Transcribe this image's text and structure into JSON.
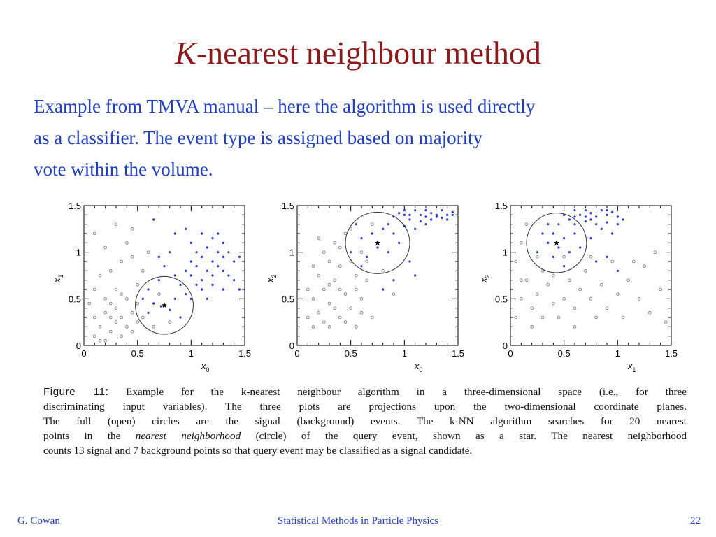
{
  "slide": {
    "title_k": "K",
    "title_rest": "-nearest neighbour method",
    "intro_lines": [
      "Example from TMVA manual – here the algorithm is used directly",
      "as a classifier.  The event type is assigned based on majority",
      "vote within the volume."
    ],
    "caption": {
      "figure_label": "Figure 11:",
      "line1_rest": "Example for the k-nearest neighbour algorithm in a three-dimensional space (i.e., for three",
      "line2": "discriminating input variables). The three plots are projections upon the two-dimensional coordinate planes.",
      "line3": "The full (open) circles are the signal (background) events.  The k-NN algorithm searches for 20 nearest",
      "line4_pre": "points in the",
      "line4_em": "nearest neighborhood",
      "line4_post": "(circle) of the query event, shown as a star.  The nearest neighborhood",
      "line5": "counts 13 signal and 7 background points so that query event may be classified as a signal candidate."
    },
    "footer": {
      "author": "G. Cowan",
      "course": "Statistical Methods in Particle Physics",
      "page": "22"
    }
  },
  "colors": {
    "title": "#8b1a1a",
    "text_blue": "#1f3fbf",
    "signal": "#1f2fd8",
    "background": "#777777",
    "axis": "#000000"
  },
  "chart_data": [
    {
      "type": "scatter",
      "xlabel": "x",
      "xlabel_sub": "0",
      "ylabel": "x",
      "ylabel_sub": "1",
      "xlim": [
        0,
        1.5
      ],
      "ylim": [
        0,
        1.5
      ],
      "xticks": [
        "0",
        "0.5",
        "1",
        "1.5"
      ],
      "yticks": [
        "0",
        "0.5",
        "1",
        "1.5"
      ],
      "query": [
        0.75,
        0.43
      ],
      "neighbourhood_radius": [
        0.27,
        0.31
      ],
      "signal": [
        [
          0.85,
          0.75
        ],
        [
          0.95,
          0.8
        ],
        [
          1.0,
          0.9
        ],
        [
          1.05,
          0.85
        ],
        [
          1.1,
          0.95
        ],
        [
          1.15,
          0.8
        ],
        [
          1.2,
          0.9
        ],
        [
          1.25,
          0.85
        ],
        [
          1.3,
          0.8
        ],
        [
          1.35,
          0.75
        ],
        [
          1.4,
          0.7
        ],
        [
          1.1,
          0.7
        ],
        [
          1.2,
          0.75
        ],
        [
          1.0,
          0.75
        ],
        [
          1.05,
          1.0
        ],
        [
          1.15,
          1.05
        ],
        [
          1.25,
          1.0
        ],
        [
          1.3,
          0.95
        ],
        [
          1.4,
          0.9
        ],
        [
          1.45,
          0.6
        ],
        [
          1.1,
          0.6
        ],
        [
          1.2,
          0.65
        ],
        [
          0.9,
          0.65
        ],
        [
          0.95,
          0.55
        ],
        [
          1.3,
          1.1
        ],
        [
          1.35,
          1.0
        ],
        [
          1.0,
          1.1
        ],
        [
          0.8,
          1.0
        ],
        [
          0.85,
          1.2
        ],
        [
          1.1,
          1.2
        ],
        [
          0.75,
          0.85
        ],
        [
          0.7,
          0.7
        ],
        [
          0.6,
          0.6
        ],
        [
          0.55,
          0.5
        ],
        [
          0.65,
          0.45
        ],
        [
          0.72,
          0.42
        ],
        [
          0.8,
          0.38
        ],
        [
          0.85,
          0.5
        ],
        [
          0.9,
          0.3
        ],
        [
          0.6,
          0.35
        ],
        [
          1.25,
          1.2
        ],
        [
          1.0,
          0.5
        ],
        [
          1.15,
          0.5
        ],
        [
          1.3,
          0.6
        ],
        [
          1.45,
          0.95
        ],
        [
          1.2,
          1.15
        ],
        [
          0.95,
          1.25
        ],
        [
          0.65,
          1.35
        ],
        [
          0.7,
          0.95
        ],
        [
          1.05,
          0.65
        ]
      ],
      "background": [
        [
          0.1,
          0.1
        ],
        [
          0.15,
          0.2
        ],
        [
          0.2,
          0.05
        ],
        [
          0.25,
          0.15
        ],
        [
          0.3,
          0.25
        ],
        [
          0.35,
          0.1
        ],
        [
          0.1,
          0.3
        ],
        [
          0.2,
          0.35
        ],
        [
          0.3,
          0.4
        ],
        [
          0.4,
          0.2
        ],
        [
          0.15,
          0.05
        ],
        [
          0.25,
          0.3
        ],
        [
          0.35,
          0.3
        ],
        [
          0.45,
          0.35
        ],
        [
          0.5,
          0.45
        ],
        [
          0.2,
          0.5
        ],
        [
          0.3,
          0.6
        ],
        [
          0.1,
          0.6
        ],
        [
          0.15,
          0.75
        ],
        [
          0.25,
          0.8
        ],
        [
          0.35,
          0.9
        ],
        [
          0.45,
          0.95
        ],
        [
          0.4,
          1.1
        ],
        [
          0.5,
          0.65
        ],
        [
          0.55,
          0.8
        ],
        [
          0.2,
          1.05
        ],
        [
          0.1,
          1.2
        ],
        [
          0.3,
          1.3
        ],
        [
          0.45,
          1.25
        ],
        [
          0.6,
          1.0
        ],
        [
          0.05,
          0.45
        ],
        [
          0.4,
          0.5
        ],
        [
          0.55,
          0.3
        ],
        [
          0.65,
          0.2
        ],
        [
          0.7,
          0.55
        ],
        [
          0.8,
          0.25
        ],
        [
          0.25,
          0.45
        ],
        [
          0.35,
          0.55
        ],
        [
          0.45,
          0.15
        ],
        [
          0.5,
          0.25
        ]
      ]
    },
    {
      "type": "scatter",
      "xlabel": "x",
      "xlabel_sub": "0",
      "ylabel": "x",
      "ylabel_sub": "2",
      "xlim": [
        0,
        1.5
      ],
      "ylim": [
        0,
        1.5
      ],
      "xticks": [
        "0",
        "0.5",
        "1",
        "1.5"
      ],
      "yticks": [
        "0",
        "0.5",
        "1",
        "1.5"
      ],
      "query": [
        0.75,
        1.1
      ],
      "neighbourhood_radius": [
        0.3,
        0.33
      ],
      "signal": [
        [
          1.0,
          1.45
        ],
        [
          1.05,
          1.4
        ],
        [
          1.1,
          1.45
        ],
        [
          1.15,
          1.4
        ],
        [
          1.2,
          1.45
        ],
        [
          1.25,
          1.42
        ],
        [
          1.3,
          1.38
        ],
        [
          1.35,
          1.45
        ],
        [
          1.4,
          1.4
        ],
        [
          1.45,
          1.43
        ],
        [
          0.9,
          1.38
        ],
        [
          0.95,
          1.42
        ],
        [
          1.05,
          1.35
        ],
        [
          1.15,
          1.33
        ],
        [
          1.25,
          1.35
        ],
        [
          1.35,
          1.37
        ],
        [
          0.85,
          1.3
        ],
        [
          0.8,
          1.25
        ],
        [
          0.9,
          1.2
        ],
        [
          1.0,
          1.28
        ],
        [
          1.1,
          1.25
        ],
        [
          0.7,
          1.2
        ],
        [
          0.75,
          1.05
        ],
        [
          0.85,
          1.0
        ],
        [
          0.95,
          1.1
        ],
        [
          0.6,
          1.15
        ],
        [
          0.65,
          0.95
        ],
        [
          0.55,
          1.3
        ],
        [
          0.5,
          1.0
        ],
        [
          1.2,
          1.3
        ],
        [
          0.9,
          0.7
        ],
        [
          1.05,
          0.9
        ],
        [
          1.1,
          0.75
        ],
        [
          0.6,
          0.85
        ],
        [
          0.8,
          0.6
        ],
        [
          1.3,
          1.4
        ],
        [
          1.4,
          1.35
        ],
        [
          1.45,
          1.4
        ],
        [
          1.0,
          1.4
        ],
        [
          1.2,
          1.38
        ]
      ],
      "background": [
        [
          0.1,
          0.3
        ],
        [
          0.15,
          0.5
        ],
        [
          0.2,
          0.35
        ],
        [
          0.25,
          0.6
        ],
        [
          0.3,
          0.45
        ],
        [
          0.35,
          0.7
        ],
        [
          0.4,
          0.85
        ],
        [
          0.45,
          0.55
        ],
        [
          0.2,
          0.75
        ],
        [
          0.3,
          0.9
        ],
        [
          0.25,
          1.0
        ],
        [
          0.35,
          1.1
        ],
        [
          0.4,
          0.3
        ],
        [
          0.5,
          0.4
        ],
        [
          0.55,
          0.6
        ],
        [
          0.6,
          0.5
        ],
        [
          0.45,
          1.2
        ],
        [
          0.55,
          0.75
        ],
        [
          0.65,
          0.7
        ],
        [
          0.7,
          0.3
        ],
        [
          0.15,
          0.85
        ],
        [
          0.25,
          0.25
        ],
        [
          0.3,
          0.2
        ],
        [
          0.5,
          0.9
        ],
        [
          0.6,
          1.0
        ],
        [
          0.4,
          1.05
        ],
        [
          0.2,
          1.15
        ],
        [
          0.35,
          0.4
        ],
        [
          0.45,
          0.25
        ],
        [
          0.1,
          0.6
        ],
        [
          0.65,
          0.9
        ],
        [
          0.7,
          1.3
        ],
        [
          0.8,
          0.8
        ],
        [
          0.9,
          0.55
        ],
        [
          0.55,
          0.2
        ],
        [
          0.3,
          0.65
        ],
        [
          0.5,
          1.25
        ],
        [
          0.15,
          0.2
        ],
        [
          0.4,
          0.6
        ],
        [
          0.6,
          0.35
        ]
      ]
    },
    {
      "type": "scatter",
      "xlabel": "x",
      "xlabel_sub": "1",
      "ylabel": "x",
      "ylabel_sub": "2",
      "xlim": [
        0,
        1.5
      ],
      "ylim": [
        0,
        1.5
      ],
      "xticks": [
        "0",
        "0.5",
        "1",
        "1.5"
      ],
      "yticks": [
        "0",
        "0.5",
        "1",
        "1.5"
      ],
      "query": [
        0.43,
        1.1
      ],
      "neighbourhood_radius": [
        0.28,
        0.32
      ],
      "signal": [
        [
          0.6,
          1.45
        ],
        [
          0.65,
          1.4
        ],
        [
          0.7,
          1.45
        ],
        [
          0.75,
          1.42
        ],
        [
          0.8,
          1.38
        ],
        [
          0.85,
          1.45
        ],
        [
          0.9,
          1.4
        ],
        [
          0.95,
          1.43
        ],
        [
          1.0,
          1.38
        ],
        [
          0.55,
          1.35
        ],
        [
          0.6,
          1.3
        ],
        [
          0.7,
          1.33
        ],
        [
          0.8,
          1.3
        ],
        [
          0.9,
          1.32
        ],
        [
          1.0,
          1.3
        ],
        [
          0.5,
          1.4
        ],
        [
          0.45,
          1.3
        ],
        [
          0.4,
          1.2
        ],
        [
          0.5,
          1.15
        ],
        [
          0.35,
          1.1
        ],
        [
          0.45,
          1.05
        ],
        [
          0.55,
          1.0
        ],
        [
          0.4,
          0.95
        ],
        [
          0.3,
          1.2
        ],
        [
          0.25,
          1.0
        ],
        [
          0.6,
          1.2
        ],
        [
          0.65,
          1.05
        ],
        [
          0.75,
          1.15
        ],
        [
          0.85,
          1.25
        ],
        [
          0.7,
          1.38
        ],
        [
          0.8,
          0.9
        ],
        [
          0.9,
          0.95
        ],
        [
          0.5,
          0.85
        ],
        [
          0.35,
          1.3
        ],
        [
          0.95,
          1.2
        ],
        [
          1.0,
          0.8
        ],
        [
          0.75,
          1.35
        ],
        [
          0.9,
          1.45
        ],
        [
          0.6,
          1.38
        ],
        [
          1.05,
          1.35
        ]
      ],
      "background": [
        [
          0.05,
          0.3
        ],
        [
          0.1,
          0.5
        ],
        [
          0.15,
          0.7
        ],
        [
          0.2,
          0.4
        ],
        [
          0.25,
          0.55
        ],
        [
          0.3,
          0.8
        ],
        [
          0.05,
          0.9
        ],
        [
          0.1,
          1.1
        ],
        [
          0.15,
          1.3
        ],
        [
          0.35,
          0.65
        ],
        [
          0.4,
          0.45
        ],
        [
          0.45,
          0.3
        ],
        [
          0.5,
          0.5
        ],
        [
          0.55,
          0.7
        ],
        [
          0.6,
          0.4
        ],
        [
          0.65,
          0.6
        ],
        [
          0.7,
          0.8
        ],
        [
          0.75,
          0.5
        ],
        [
          0.8,
          0.3
        ],
        [
          0.85,
          0.65
        ],
        [
          0.9,
          0.4
        ],
        [
          0.95,
          0.9
        ],
        [
          1.0,
          0.55
        ],
        [
          1.05,
          0.3
        ],
        [
          1.1,
          0.7
        ],
        [
          1.2,
          0.5
        ],
        [
          1.25,
          0.85
        ],
        [
          1.3,
          0.35
        ],
        [
          1.35,
          1.0
        ],
        [
          1.4,
          0.6
        ],
        [
          0.2,
          0.2
        ],
        [
          0.3,
          0.3
        ],
        [
          0.4,
          0.75
        ],
        [
          0.6,
          0.2
        ],
        [
          0.75,
          0.95
        ],
        [
          1.15,
          0.9
        ],
        [
          1.45,
          0.25
        ],
        [
          0.5,
          0.95
        ],
        [
          0.25,
          0.95
        ],
        [
          0.1,
          0.7
        ]
      ]
    }
  ]
}
